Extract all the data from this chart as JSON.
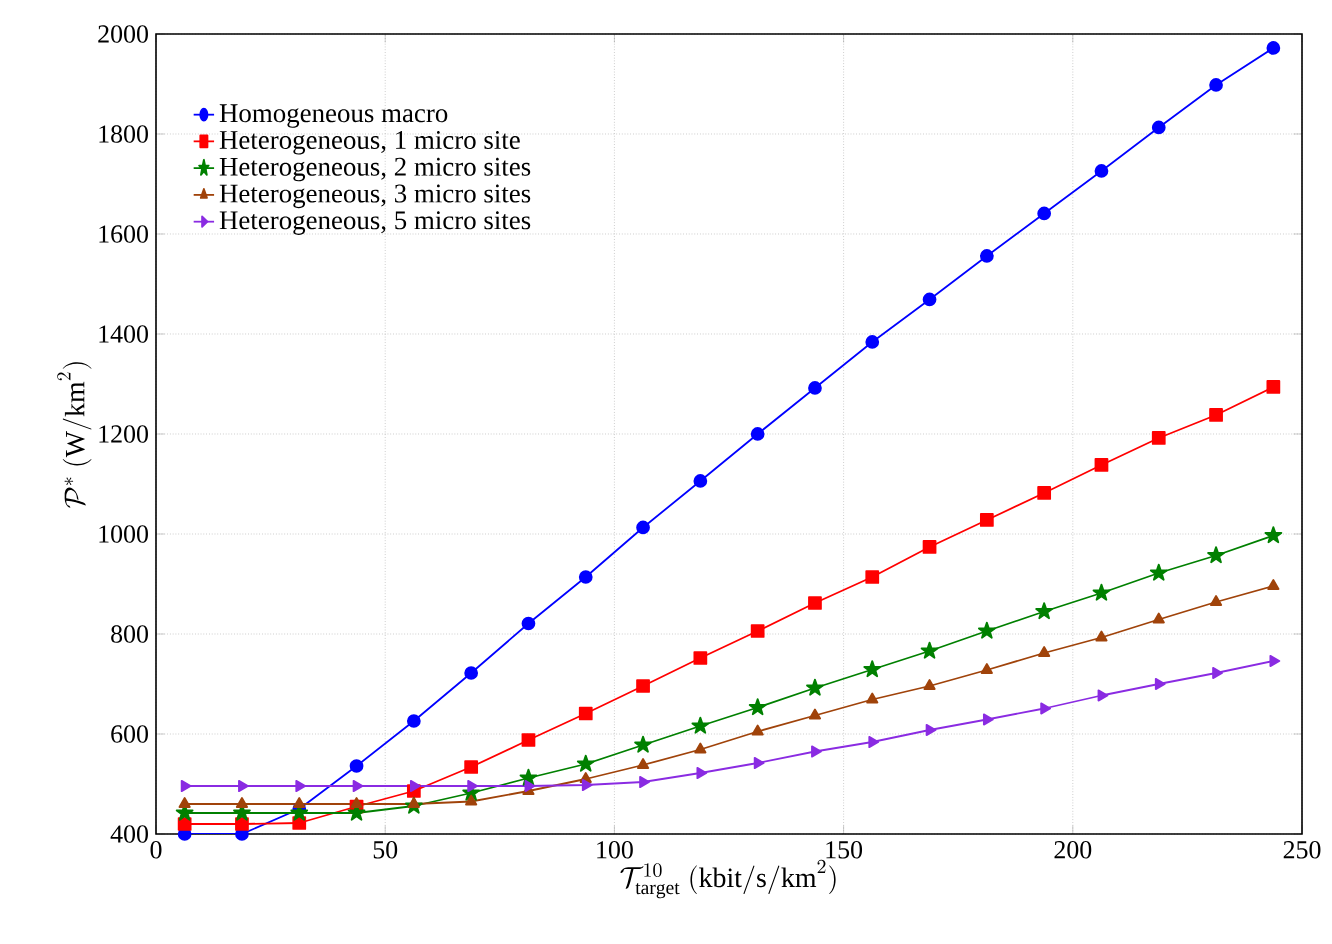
{
  "chart_data": {
    "type": "line",
    "xlabel": "\\mathcal{T}_{\\mathrm{target}}^{10}\\ (\\mathrm{kbit/s/km}^2)",
    "ylabel": "\\mathcal{P}^{*}\\ (\\mathrm{W/km}^2)",
    "x": [
      6.25,
      18.75,
      31.25,
      43.75,
      56.25,
      68.75,
      81.25,
      93.75,
      106.25,
      118.75,
      131.25,
      143.75,
      156.25,
      168.75,
      181.25,
      193.75,
      206.25,
      218.75,
      231.25,
      243.75
    ],
    "series": [
      {
        "name": "Homogeneous macro",
        "color": "#0000ff",
        "marker": "circle",
        "values": [
          400,
          400,
          450,
          536,
          626,
          722,
          821,
          914,
          1013,
          1106,
          1200,
          1292,
          1384,
          1469,
          1556,
          1641,
          1726,
          1813,
          1898,
          1972
        ]
      },
      {
        "name": "Heterogeneous, 1 micro site",
        "color": "#ff0000",
        "marker": "square",
        "values": [
          420,
          420,
          422,
          455,
          486,
          534,
          588,
          641,
          696,
          752,
          806,
          862,
          914,
          974,
          1028,
          1082,
          1138,
          1192,
          1238,
          1294
        ]
      },
      {
        "name": "Heterogeneous, 2 micro sites",
        "color": "#008000",
        "marker": "star",
        "values": [
          442,
          442,
          442,
          442,
          456,
          482,
          512,
          540,
          578,
          616,
          653,
          692,
          729,
          766,
          806,
          845,
          882,
          922,
          957,
          997
        ]
      },
      {
        "name": "Heterogeneous, 3 micro sites",
        "color": "#a0430a",
        "marker": "triangle",
        "values": [
          460,
          460,
          460,
          460,
          460,
          465,
          486,
          510,
          538,
          569,
          605,
          637,
          669,
          696,
          728,
          762,
          793,
          829,
          864,
          896
        ]
      },
      {
        "name": "Heterogeneous, 5 micro sites",
        "color": "#8a2be2",
        "marker": "triangle-right",
        "values": [
          496,
          496,
          496,
          496,
          496,
          496,
          496,
          498,
          504,
          522,
          542,
          565,
          584,
          608,
          629,
          651,
          677,
          700,
          722,
          746
        ]
      }
    ],
    "xlim": [
      0,
      250
    ],
    "ylim": [
      400,
      2000
    ],
    "xticks": [
      0,
      50,
      100,
      150,
      200,
      250
    ],
    "yticks": [
      400,
      600,
      800,
      1000,
      1200,
      1400,
      1600,
      1800,
      2000
    ],
    "grid": true,
    "legend": "top left",
    "line_style": "solid"
  }
}
